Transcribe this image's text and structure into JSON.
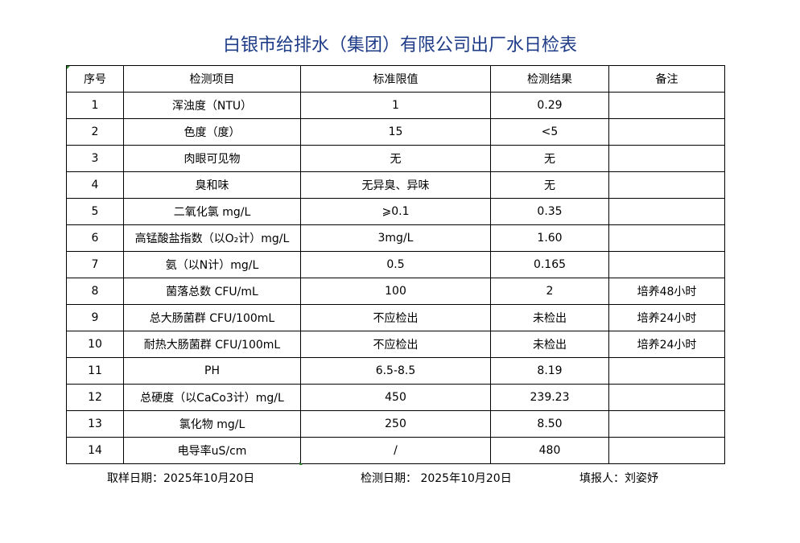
{
  "title": "白银市给排水（集团）有限公司出厂水日检表",
  "headers": [
    "序号",
    "检测项目",
    "标准限值",
    "检测结果",
    "备注"
  ],
  "rows": [
    [
      "1",
      "浑浊度（NTU）",
      "1",
      "0.29",
      ""
    ],
    [
      "2",
      "色度（度）",
      "15",
      "<5",
      ""
    ],
    [
      "3",
      "肉眼可见物",
      "无",
      "无",
      ""
    ],
    [
      "4",
      "臭和味",
      "无异臭、异味",
      "无",
      ""
    ],
    [
      "5",
      "二氧化氯 mg/L",
      "⩾0.1",
      "0.35",
      ""
    ],
    [
      "6",
      "高锰酸盐指数（以O₂计）mg/L",
      "3mg/L",
      "1.60",
      ""
    ],
    [
      "7",
      "氨（以N计）mg/L",
      "0.5",
      "0.165",
      ""
    ],
    [
      "8",
      "菌落总数 CFU/mL",
      "100",
      "2",
      "培养48小时"
    ],
    [
      "9",
      "总大肠菌群 CFU/100mL",
      "不应检出",
      "未检出",
      "培养24小时"
    ],
    [
      "10",
      "耐热大肠菌群 CFU/100mL",
      "不应检出",
      "未检出",
      "培养24小时"
    ],
    [
      "11",
      "PH",
      "6.5-8.5",
      "8.19",
      ""
    ],
    [
      "12",
      "总硬度（以CaCo3计）mg/L",
      "450",
      "239.23",
      ""
    ],
    [
      "13",
      "氯化物 mg/L",
      "250",
      "8.50",
      ""
    ],
    [
      "14",
      "电导率uS/cm",
      "/",
      "480",
      ""
    ]
  ],
  "footer": {
    "sampling": "取样日期：2025年10月20日",
    "testing": "检测日期： 2025年10月20日",
    "reporter": "填报人：刘姿妤"
  }
}
